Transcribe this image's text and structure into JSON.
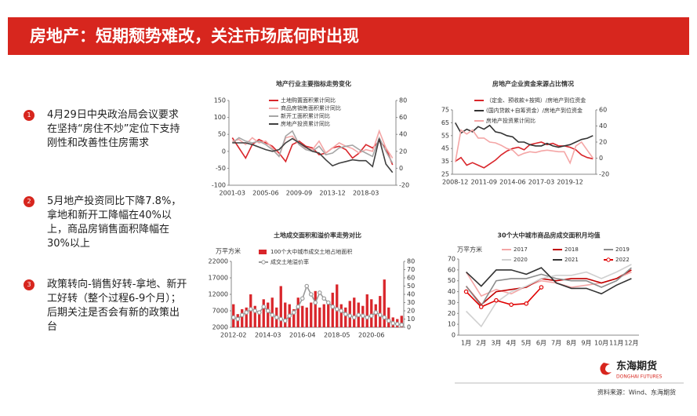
{
  "header": {
    "title": "房地产：短期颓势难改，关注市场底何时出现"
  },
  "bullets": [
    {
      "num": "1",
      "text": "4月29日中央政治局会议要求在坚持“房住不炒”定位下支持刚性和改善性住房需求"
    },
    {
      "num": "2",
      "text": "5月地产投资同比下降7.8%，拿地和新开工降幅在40%以上，商品房销售面积降幅在30%以上"
    },
    {
      "num": "3",
      "text": "政策转向-销售好转-拿地、新开工好转（整个过程6-9个月）；后期关注是否会有新的政策出台"
    }
  ],
  "logo": {
    "name": "东海期货",
    "en": "DONGHAI FUTURES"
  },
  "source": "资料来源：Wind、东海期货",
  "chart_data": [
    {
      "type": "line",
      "title": "地产行业主要指标走势变化",
      "categories": [
        "2001-03",
        null,
        null,
        null,
        null,
        "2005-06",
        null,
        null,
        null,
        null,
        "2009-09",
        null,
        null,
        null,
        null,
        "2013-12",
        null,
        null,
        null,
        null,
        "2018-03",
        null,
        null,
        null,
        null
      ],
      "ylim": [
        -100,
        150
      ],
      "yticks": [
        150,
        100,
        50,
        0,
        -50,
        -100
      ],
      "y2lim": [
        -20,
        80
      ],
      "y2ticks": [
        80,
        60,
        40,
        20,
        0,
        -20
      ],
      "series": [
        {
          "name": "土地购置面积累计同比",
          "color": "#d9262b",
          "values": [
            40,
            10,
            -20,
            20,
            35,
            25,
            15,
            -5,
            -30,
            20,
            30,
            15,
            10,
            -10,
            -5,
            10,
            15,
            5,
            -20,
            -5,
            20,
            10,
            30,
            10,
            -40
          ]
        },
        {
          "name": "商品房销售面积累计同比",
          "color": "#f4a6a6",
          "values": [
            30,
            35,
            20,
            40,
            25,
            30,
            10,
            -15,
            40,
            45,
            20,
            10,
            5,
            30,
            -5,
            10,
            25,
            15,
            8,
            -5,
            5,
            0,
            60,
            10,
            -20
          ]
        },
        {
          "name": "新开工面积累计同比",
          "color": "#a6a6a6",
          "values": [
            25,
            40,
            30,
            25,
            30,
            20,
            5,
            -15,
            45,
            60,
            20,
            5,
            0,
            15,
            -10,
            -5,
            10,
            15,
            18,
            5,
            -5,
            -15,
            40,
            0,
            -35
          ]
        },
        {
          "name": "房地产投资累计同比",
          "color": "#404040",
          "axis": "y2",
          "values": [
            30,
            30,
            30,
            28,
            25,
            22,
            20,
            22,
            30,
            35,
            30,
            25,
            20,
            18,
            10,
            3,
            6,
            8,
            10,
            9,
            9,
            2,
            35,
            5,
            -5
          ]
        }
      ]
    },
    {
      "type": "line",
      "title": "房地产企业资金来源占比情况",
      "categories": [
        "2008-12",
        null,
        null,
        null,
        null,
        "2011-09",
        null,
        null,
        null,
        null,
        "2014-06",
        null,
        null,
        null,
        null,
        "2017-03",
        null,
        null,
        null,
        null,
        "2019-12",
        null,
        null,
        null,
        null
      ],
      "ylim": [
        25,
        75
      ],
      "yticks": [
        75,
        65,
        55,
        45,
        35,
        25
      ],
      "y2lim": [
        -20,
        60
      ],
      "y2ticks": [
        60,
        40,
        20,
        0,
        -20
      ],
      "series": [
        {
          "name": "（定金、预收款+按揭）/房地产到位资金",
          "color": "#d9262b",
          "values": [
            35,
            38,
            32,
            34,
            32,
            30,
            33,
            36,
            40,
            43,
            45,
            46,
            44,
            48,
            49,
            50,
            48,
            49,
            47,
            47,
            46,
            44,
            40,
            38,
            37
          ]
        },
        {
          "name": "(国内贷款+自筹资金）/房地产到位资金",
          "color": "#333333",
          "values": [
            65,
            57,
            60,
            58,
            62,
            60,
            63,
            58,
            57,
            55,
            54,
            50,
            50,
            48,
            47,
            47,
            49,
            47,
            46,
            47,
            48,
            50,
            52,
            53,
            55
          ]
        },
        {
          "name": "房地产投资累计同比",
          "color": "#f4a6a6",
          "axis": "y2",
          "values": [
            -5,
            35,
            30,
            35,
            25,
            25,
            20,
            19,
            16,
            12,
            10,
            3,
            6,
            8,
            7,
            9,
            10,
            9,
            8,
            8,
            -6,
            15,
            20,
            10,
            0
          ]
        }
      ]
    },
    {
      "type": "bar",
      "title": "土地成交面积和溢价率走势对比",
      "unit": "万平方米",
      "categories": [
        "2012-02",
        null,
        null,
        null,
        null,
        null,
        null,
        null,
        "2014-03",
        null,
        null,
        null,
        null,
        null,
        null,
        null,
        "2016-04",
        null,
        null,
        null,
        null,
        null,
        null,
        null,
        "2018-05",
        null,
        null,
        null,
        null,
        null,
        null,
        null,
        "2020-06",
        null,
        null,
        null,
        null,
        null,
        null,
        null
      ],
      "ylim": [
        2000,
        22000
      ],
      "yticks": [
        22000,
        17000,
        12000,
        7000,
        2000
      ],
      "y2lim": [
        0,
        80
      ],
      "y2ticks": [
        80,
        70,
        60,
        50,
        40,
        30,
        20,
        10,
        0
      ],
      "series": [
        {
          "name": "100个大中城市成交土地占地面积",
          "color": "#d9262b",
          "values": [
            9000,
            6000,
            7500,
            8000,
            12000,
            8500,
            7000,
            10500,
            9500,
            11000,
            8000,
            14500,
            9500,
            9000,
            7500,
            11000,
            8500,
            8000,
            9500,
            13000,
            8000,
            9000,
            10000,
            12500,
            15000,
            9000,
            8000,
            10000,
            11000,
            9500,
            8500,
            12000,
            10500,
            9000,
            11500,
            16500,
            8000,
            5000,
            4500,
            5500
          ]
        },
        {
          "name": "成交土地溢价率",
          "color": "#9a9a9a",
          "type": "line",
          "axis": "y2",
          "markers": true,
          "values": [
            12,
            10,
            15,
            18,
            22,
            20,
            18,
            25,
            20,
            15,
            12,
            10,
            8,
            14,
            18,
            25,
            35,
            50,
            40,
            30,
            42,
            35,
            30,
            25,
            22,
            20,
            16,
            14,
            12,
            15,
            14,
            12,
            14,
            18,
            15,
            12,
            8,
            5,
            4,
            3
          ]
        }
      ]
    },
    {
      "type": "line",
      "title": "30个大中城市商品房成交面积月均值",
      "unit": "万平方米",
      "categories": [
        "1月",
        "2月",
        "3月",
        "4月",
        "5月",
        "6月",
        "7月",
        "8月",
        "9月",
        "10月",
        "11月",
        "12月"
      ],
      "ylim": [
        0,
        70
      ],
      "yticks": [
        70,
        60,
        50,
        40,
        30,
        20,
        10,
        0
      ],
      "series": [
        {
          "name": "2017",
          "color": "#f4a6a6",
          "values": [
            58,
            36,
            42,
            38,
            45,
            50,
            48,
            44,
            46,
            48,
            52,
            58
          ]
        },
        {
          "name": "2018",
          "color": "#c00000",
          "values": [
            45,
            28,
            40,
            42,
            44,
            52,
            50,
            52,
            52,
            48,
            52,
            60
          ]
        },
        {
          "name": "2019",
          "color": "#8c8c8c",
          "values": [
            45,
            27,
            50,
            52,
            52,
            56,
            52,
            50,
            50,
            44,
            50,
            62
          ]
        },
        {
          "name": "2020",
          "color": "#d0d0d0",
          "values": [
            22,
            8,
            30,
            40,
            45,
            52,
            55,
            55,
            58,
            52,
            58,
            65
          ]
        },
        {
          "name": "2021",
          "color": "#333333",
          "values": [
            58,
            45,
            60,
            60,
            56,
            62,
            48,
            43,
            43,
            38,
            46,
            52
          ]
        },
        {
          "name": "2022",
          "color": "#e00000",
          "markers": true,
          "values": [
            40,
            26,
            32,
            28,
            29,
            44,
            null,
            null,
            null,
            null,
            null,
            null
          ]
        }
      ]
    }
  ]
}
